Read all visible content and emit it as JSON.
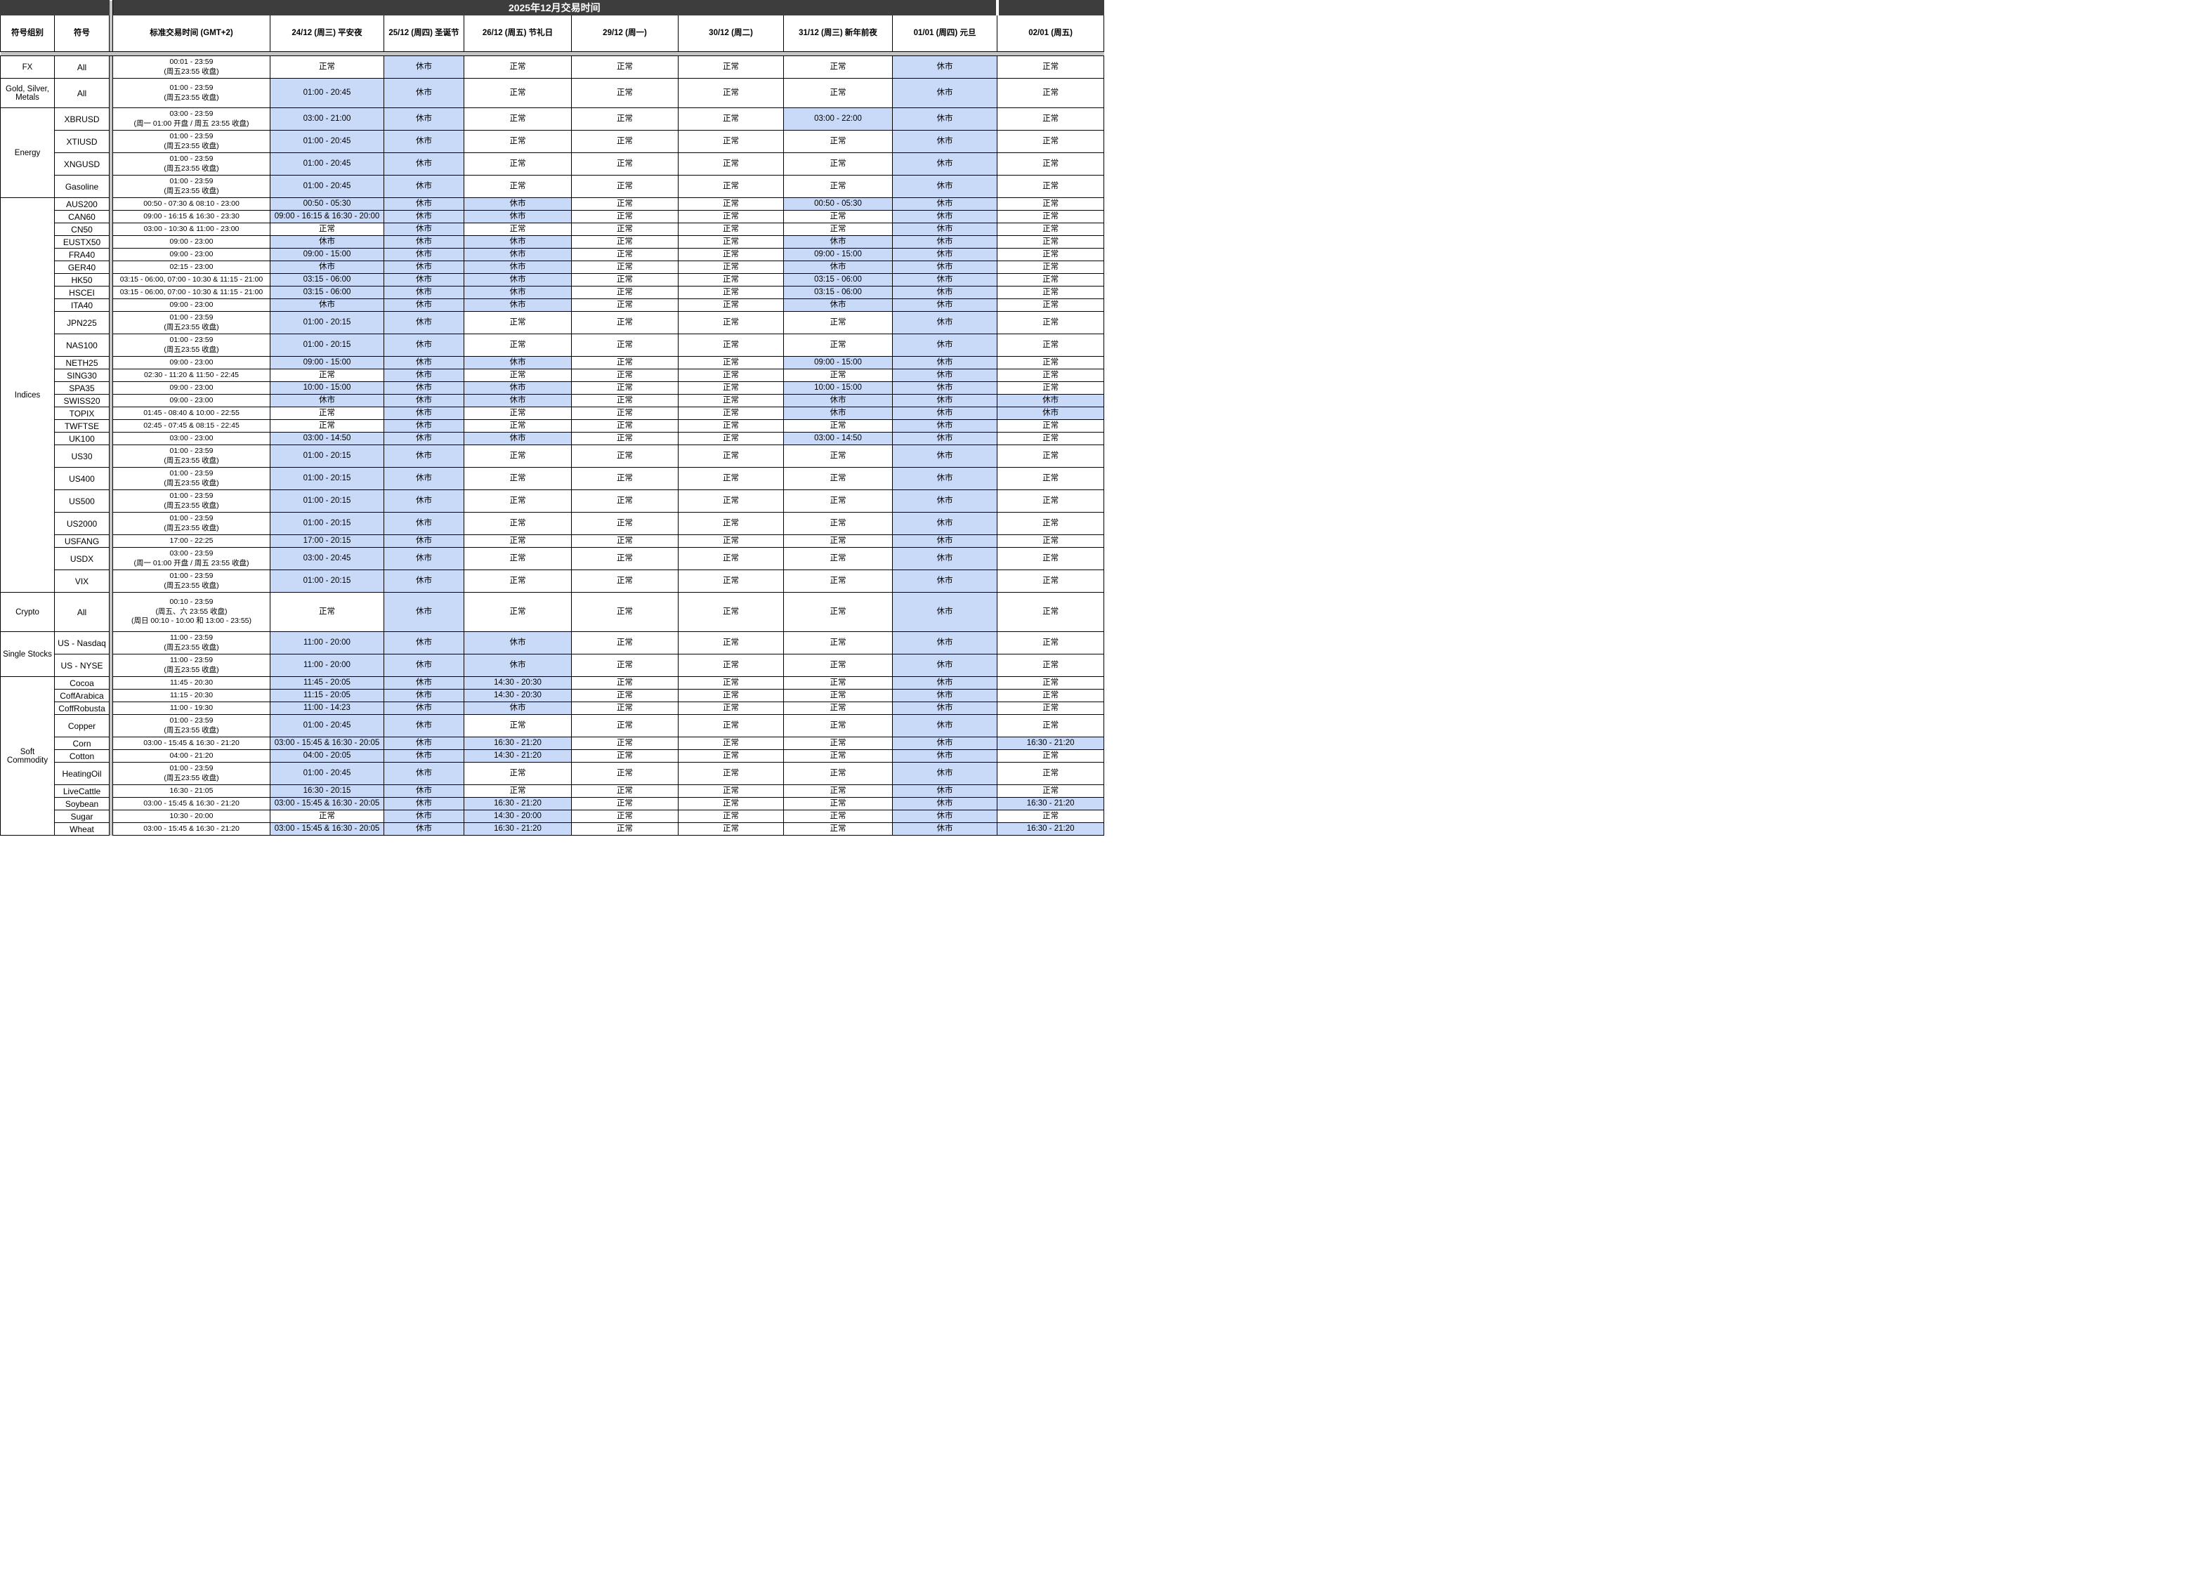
{
  "title": "2025年12月交易时间",
  "colors": {
    "modified_bg": "#c9daf8",
    "normal_bg": "#ffffff",
    "title_bar_bg": "#3d3d3d",
    "frozen_divider": "#c4c4c4",
    "border": "#000000"
  },
  "columns": [
    {
      "label": "符号组别"
    },
    {
      "label": "符号"
    },
    {
      "label": "标准交易时间 (GMT+2)"
    },
    {
      "label": "24/12 (周三) 平安夜"
    },
    {
      "label": "25/12 (周四) 圣诞节"
    },
    {
      "label": "26/12 (周五) 节礼日"
    },
    {
      "label": "29/12 (周一)"
    },
    {
      "label": "30/12 (周二)"
    },
    {
      "label": "31/12 (周三) 新年前夜"
    },
    {
      "label": "01/01 (周四) 元旦"
    },
    {
      "label": "02/01 (周五)"
    }
  ],
  "groups": [
    {
      "name": "FX",
      "rows": [
        {
          "symbol": "All",
          "std": "00:01 - 23:59\n(周五23:55 收盘)",
          "days": [
            "正常",
            "休市",
            "正常",
            "正常",
            "正常",
            "正常",
            "休市",
            "正常"
          ]
        }
      ]
    },
    {
      "name": "Gold, Silver, Metals",
      "rows": [
        {
          "symbol": "All",
          "std": "01:00 - 23:59\n(周五23:55 收盘)",
          "days": [
            "01:00 - 20:45",
            "休市",
            "正常",
            "正常",
            "正常",
            "正常",
            "休市",
            "正常"
          ]
        }
      ]
    },
    {
      "name": "Energy",
      "rows": [
        {
          "symbol": "XBRUSD",
          "std": "03:00 - 23:59\n(周一 01:00 开盘 / 周五 23:55 收盘)",
          "days": [
            "03:00 - 21:00",
            "休市",
            "正常",
            "正常",
            "正常",
            "03:00 - 22:00",
            "休市",
            "正常"
          ]
        },
        {
          "symbol": "XTIUSD",
          "std": "01:00 - 23:59\n(周五23:55 收盘)",
          "days": [
            "01:00 - 20:45",
            "休市",
            "正常",
            "正常",
            "正常",
            "正常",
            "休市",
            "正常"
          ]
        },
        {
          "symbol": "XNGUSD",
          "std": "01:00 - 23:59\n(周五23:55 收盘)",
          "days": [
            "01:00 - 20:45",
            "休市",
            "正常",
            "正常",
            "正常",
            "正常",
            "休市",
            "正常"
          ]
        },
        {
          "symbol": "Gasoline",
          "std": "01:00 - 23:59\n(周五23:55 收盘)",
          "days": [
            "01:00 - 20:45",
            "休市",
            "正常",
            "正常",
            "正常",
            "正常",
            "休市",
            "正常"
          ]
        }
      ]
    },
    {
      "name": "Indices",
      "rows": [
        {
          "symbol": "AUS200",
          "std": "00:50 - 07:30 & 08:10 - 23:00",
          "days": [
            "00:50 - 05:30",
            "休市",
            "休市",
            "正常",
            "正常",
            "00:50 - 05:30",
            "休市",
            "正常"
          ]
        },
        {
          "symbol": "CAN60",
          "std": "09:00 - 16:15 & 16:30 - 23:30",
          "days": [
            "09:00 - 16:15 & 16:30 - 20:00",
            "休市",
            "休市",
            "正常",
            "正常",
            "正常",
            "休市",
            "正常"
          ]
        },
        {
          "symbol": "CN50",
          "std": "03:00 - 10:30 & 11:00 - 23:00",
          "days": [
            "正常",
            "休市",
            "正常",
            "正常",
            "正常",
            "正常",
            "休市",
            "正常"
          ]
        },
        {
          "symbol": "EUSTX50",
          "std": "09:00 - 23:00",
          "days": [
            "休市",
            "休市",
            "休市",
            "正常",
            "正常",
            "休市",
            "休市",
            "正常"
          ]
        },
        {
          "symbol": "FRA40",
          "std": "09:00 - 23:00",
          "days": [
            "09:00 - 15:00",
            "休市",
            "休市",
            "正常",
            "正常",
            "09:00 - 15:00",
            "休市",
            "正常"
          ]
        },
        {
          "symbol": "GER40",
          "std": "02:15 - 23:00",
          "days": [
            "休市",
            "休市",
            "休市",
            "正常",
            "正常",
            "休市",
            "休市",
            "正常"
          ]
        },
        {
          "symbol": "HK50",
          "std": "03:15 - 06:00, 07:00 - 10:30 & 11:15 - 21:00",
          "days": [
            "03:15 - 06:00",
            "休市",
            "休市",
            "正常",
            "正常",
            "03:15 - 06:00",
            "休市",
            "正常"
          ]
        },
        {
          "symbol": "HSCEI",
          "std": "03:15 - 06:00, 07:00 - 10:30 & 11:15 - 21:00",
          "days": [
            "03:15 - 06:00",
            "休市",
            "休市",
            "正常",
            "正常",
            "03:15 - 06:00",
            "休市",
            "正常"
          ]
        },
        {
          "symbol": "ITA40",
          "std": "09:00 - 23:00",
          "days": [
            "休市",
            "休市",
            "休市",
            "正常",
            "正常",
            "休市",
            "休市",
            "正常"
          ]
        },
        {
          "symbol": "JPN225",
          "std": "01:00 - 23:59\n(周五23:55 收盘)",
          "days": [
            "01:00 - 20:15",
            "休市",
            "正常",
            "正常",
            "正常",
            "正常",
            "休市",
            "正常"
          ]
        },
        {
          "symbol": "NAS100",
          "std": "01:00 - 23:59\n(周五23:55 收盘)",
          "days": [
            "01:00 - 20:15",
            "休市",
            "正常",
            "正常",
            "正常",
            "正常",
            "休市",
            "正常"
          ]
        },
        {
          "symbol": "NETH25",
          "std": "09:00 - 23:00",
          "days": [
            "09:00 - 15:00",
            "休市",
            "休市",
            "正常",
            "正常",
            "09:00 - 15:00",
            "休市",
            "正常"
          ]
        },
        {
          "symbol": "SING30",
          "std": "02:30 - 11:20 & 11:50 - 22:45",
          "days": [
            "正常",
            "休市",
            "正常",
            "正常",
            "正常",
            "正常",
            "休市",
            "正常"
          ]
        },
        {
          "symbol": "SPA35",
          "std": "09:00 - 23:00",
          "days": [
            "10:00 - 15:00",
            "休市",
            "休市",
            "正常",
            "正常",
            "10:00 - 15:00",
            "休市",
            "正常"
          ]
        },
        {
          "symbol": "SWISS20",
          "std": "09:00 - 23:00",
          "days": [
            "休市",
            "休市",
            "休市",
            "正常",
            "正常",
            "休市",
            "休市",
            "休市"
          ]
        },
        {
          "symbol": "TOPIX",
          "std": "01:45 - 08:40 & 10:00 - 22:55",
          "days": [
            "正常",
            "休市",
            "正常",
            "正常",
            "正常",
            "休市",
            "休市",
            "休市"
          ]
        },
        {
          "symbol": "TWFTSE",
          "std": "02:45 - 07:45 & 08:15 - 22:45",
          "days": [
            "正常",
            "休市",
            "正常",
            "正常",
            "正常",
            "正常",
            "休市",
            "正常"
          ]
        },
        {
          "symbol": "UK100",
          "std": "03:00 - 23:00",
          "days": [
            "03:00 - 14:50",
            "休市",
            "休市",
            "正常",
            "正常",
            "03:00 - 14:50",
            "休市",
            "正常"
          ]
        },
        {
          "symbol": "US30",
          "std": "01:00 - 23:59\n(周五23:55 收盘)",
          "days": [
            "01:00 - 20:15",
            "休市",
            "正常",
            "正常",
            "正常",
            "正常",
            "休市",
            "正常"
          ]
        },
        {
          "symbol": "US400",
          "std": "01:00 - 23:59\n(周五23:55 收盘)",
          "days": [
            "01:00 - 20:15",
            "休市",
            "正常",
            "正常",
            "正常",
            "正常",
            "休市",
            "正常"
          ]
        },
        {
          "symbol": "US500",
          "std": "01:00 - 23:59\n(周五23:55 收盘)",
          "days": [
            "01:00 - 20:15",
            "休市",
            "正常",
            "正常",
            "正常",
            "正常",
            "休市",
            "正常"
          ]
        },
        {
          "symbol": "US2000",
          "std": "01:00 - 23:59\n(周五23:55 收盘)",
          "days": [
            "01:00 - 20:15",
            "休市",
            "正常",
            "正常",
            "正常",
            "正常",
            "休市",
            "正常"
          ]
        },
        {
          "symbol": "USFANG",
          "std": "17:00 - 22:25",
          "days": [
            "17:00 - 20:15",
            "休市",
            "正常",
            "正常",
            "正常",
            "正常",
            "休市",
            "正常"
          ]
        },
        {
          "symbol": "USDX",
          "std": "03:00 - 23:59\n(周一 01:00 开盘 / 周五 23:55 收盘)",
          "days": [
            "03:00 - 20:45",
            "休市",
            "正常",
            "正常",
            "正常",
            "正常",
            "休市",
            "正常"
          ]
        },
        {
          "symbol": "VIX",
          "std": "01:00 - 23:59\n(周五23:55 收盘)",
          "days": [
            "01:00 - 20:15",
            "休市",
            "正常",
            "正常",
            "正常",
            "正常",
            "休市",
            "正常"
          ]
        }
      ]
    },
    {
      "name": "Crypto",
      "rows": [
        {
          "symbol": "All",
          "std": "00:10 - 23:59\n(周五、六 23:55 收盘)\n(周日 00:10 - 10:00 和 13:00 - 23:55)",
          "days": [
            "正常",
            "休市",
            "正常",
            "正常",
            "正常",
            "正常",
            "休市",
            "正常"
          ]
        }
      ]
    },
    {
      "name": "Single Stocks",
      "rows": [
        {
          "symbol": "US - Nasdaq",
          "std": "11:00 - 23:59\n(周五23:55 收盘)",
          "days": [
            "11:00 - 20:00",
            "休市",
            "休市",
            "正常",
            "正常",
            "正常",
            "休市",
            "正常"
          ]
        },
        {
          "symbol": "US - NYSE",
          "std": "11:00 - 23:59\n(周五23:55 收盘)",
          "days": [
            "11:00 - 20:00",
            "休市",
            "休市",
            "正常",
            "正常",
            "正常",
            "休市",
            "正常"
          ]
        }
      ]
    },
    {
      "name": "Soft Commodity",
      "rows": [
        {
          "symbol": "Cocoa",
          "std": "11:45 - 20:30",
          "days": [
            "11:45 - 20:05",
            "休市",
            "14:30 - 20:30",
            "正常",
            "正常",
            "正常",
            "休市",
            "正常"
          ]
        },
        {
          "symbol": "CoffArabica",
          "std": "11:15 - 20:30",
          "days": [
            "11:15 - 20:05",
            "休市",
            "14:30 - 20:30",
            "正常",
            "正常",
            "正常",
            "休市",
            "正常"
          ]
        },
        {
          "symbol": "CoffRobusta",
          "std": "11:00 - 19:30",
          "days": [
            "11:00 - 14:23",
            "休市",
            "休市",
            "正常",
            "正常",
            "正常",
            "休市",
            "正常"
          ]
        },
        {
          "symbol": "Copper",
          "std": "01:00 - 23:59\n(周五23:55 收盘)",
          "days": [
            "01:00 - 20:45",
            "休市",
            "正常",
            "正常",
            "正常",
            "正常",
            "休市",
            "正常"
          ]
        },
        {
          "symbol": "Corn",
          "std": "03:00 - 15:45 & 16:30 - 21:20",
          "days": [
            "03:00 - 15:45 & 16:30 - 20:05",
            "休市",
            "16:30 - 21:20",
            "正常",
            "正常",
            "正常",
            "休市",
            "16:30 - 21:20"
          ]
        },
        {
          "symbol": "Cotton",
          "std": "04:00 - 21:20",
          "days": [
            "04:00 - 20:05",
            "休市",
            "14:30 - 21:20",
            "正常",
            "正常",
            "正常",
            "休市",
            "正常"
          ]
        },
        {
          "symbol": "HeatingOil",
          "std": "01:00 - 23:59\n(周五23:55 收盘)",
          "days": [
            "01:00 - 20:45",
            "休市",
            "正常",
            "正常",
            "正常",
            "正常",
            "休市",
            "正常"
          ]
        },
        {
          "symbol": "LiveCattle",
          "std": "16:30 - 21:05",
          "days": [
            "16:30 - 20:15",
            "休市",
            "正常",
            "正常",
            "正常",
            "正常",
            "休市",
            "正常"
          ]
        },
        {
          "symbol": "Soybean",
          "std": "03:00 - 15:45 & 16:30 - 21:20",
          "days": [
            "03:00 - 15:45 & 16:30 - 20:05",
            "休市",
            "16:30 - 21:20",
            "正常",
            "正常",
            "正常",
            "休市",
            "16:30 - 21:20"
          ]
        },
        {
          "symbol": "Sugar",
          "std": "10:30 - 20:00",
          "days": [
            "正常",
            "休市",
            "14:30 - 20:00",
            "正常",
            "正常",
            "正常",
            "休市",
            "正常"
          ]
        },
        {
          "symbol": "Wheat",
          "std": "03:00 - 15:45 & 16:30 - 21:20",
          "days": [
            "03:00 - 15:45 & 16:30 - 20:05",
            "休市",
            "16:30 - 21:20",
            "正常",
            "正常",
            "正常",
            "休市",
            "16:30 - 21:20"
          ]
        }
      ]
    }
  ]
}
